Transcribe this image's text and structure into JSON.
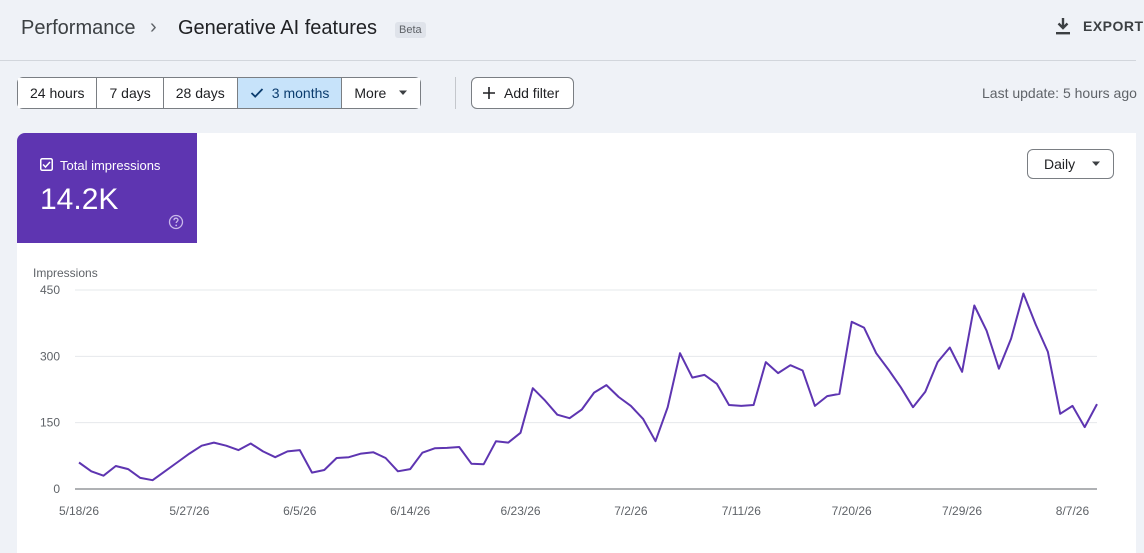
{
  "header": {
    "breadcrumb_root": "Performance",
    "breadcrumb_separator": "›",
    "page_title": "Generative AI features",
    "badge": "Beta",
    "export_label": "EXPORT"
  },
  "toolbar": {
    "ranges": [
      {
        "label": "24 hours",
        "active": false
      },
      {
        "label": "7 days",
        "active": false
      },
      {
        "label": "28 days",
        "active": false
      },
      {
        "label": "3 months",
        "active": true
      },
      {
        "label": "More",
        "active": false
      }
    ],
    "add_filter_label": "Add filter",
    "last_update": "Last update: 5 hours ago"
  },
  "metric": {
    "label": "Total impressions",
    "value": "14.2K",
    "checked": true,
    "color": "#5e35b1"
  },
  "granularity": {
    "selected": "Daily"
  },
  "chart_data": {
    "type": "line",
    "ylabel": "Impressions",
    "ylim": [
      0,
      450
    ],
    "yticks": [
      0,
      150,
      300,
      450
    ],
    "xticks": [
      "5/18/26",
      "5/27/26",
      "6/5/26",
      "6/14/26",
      "6/23/26",
      "7/2/26",
      "7/11/26",
      "7/20/26",
      "7/29/26",
      "8/7/26"
    ],
    "grid": true,
    "series": [
      {
        "color": "#5e35b1",
        "start_date": "5/18/26",
        "values": [
          60,
          40,
          30,
          52,
          45,
          25,
          20,
          40,
          60,
          80,
          98,
          105,
          98,
          88,
          103,
          85,
          72,
          85,
          88,
          37,
          43,
          70,
          72,
          80,
          83,
          70,
          40,
          45,
          82,
          92,
          93,
          95,
          57,
          56,
          108,
          105,
          127,
          228,
          200,
          168,
          160,
          180,
          218,
          235,
          208,
          188,
          158,
          108,
          185,
          307,
          252,
          258,
          238,
          190,
          188,
          190,
          287,
          262,
          280,
          268,
          188,
          210,
          215,
          378,
          365,
          307,
          270,
          230,
          185,
          220,
          287,
          320,
          265,
          415,
          358,
          272,
          340,
          442,
          372,
          310,
          170,
          188,
          140,
          192
        ]
      }
    ]
  }
}
